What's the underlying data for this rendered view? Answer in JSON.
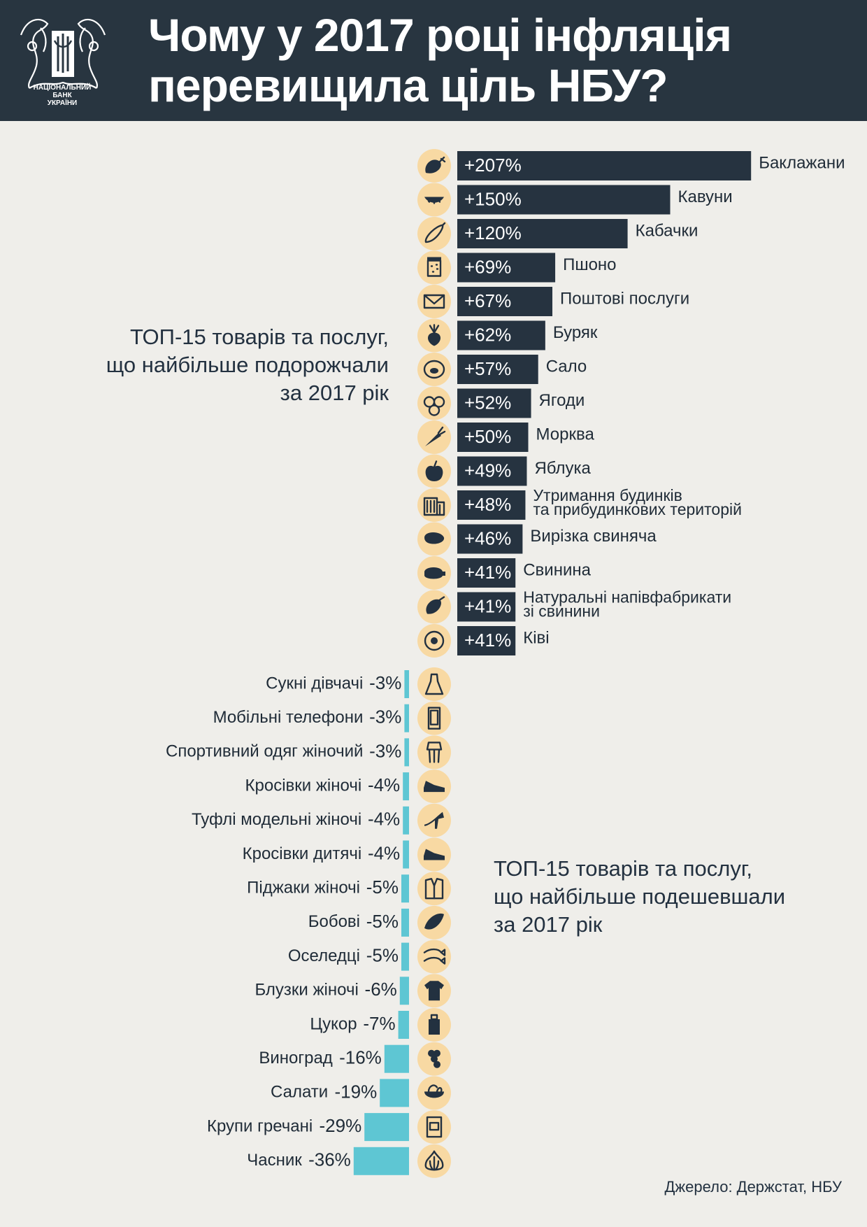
{
  "header": {
    "title_line1": "Чому у 2017 році інфляція",
    "title_line2": "перевищила ціль НБУ?",
    "logo_caption_line1": "НАЦІОНАЛЬНИЙ",
    "logo_caption_line2": "БАНК",
    "logo_caption_line3": "УКРАЇНИ"
  },
  "labels": {
    "top_line1": "ТОП-15 товарів та послуг,",
    "top_line2": "що найбільше подорожчали",
    "top_line3": "за 2017 рік",
    "bottom_line1": "ТОП-15 товарів та послуг,",
    "bottom_line2": "що найбільше подешевшали",
    "bottom_line3": "за 2017 рік"
  },
  "source": "Джерело: Держстат, НБУ",
  "colors": {
    "header_bg": "#283540",
    "increase_bar": "#263340",
    "decrease_bar": "#5ec6d3",
    "icon_circle": "#f8d9a3",
    "icon_glyph": "#233140",
    "background": "#efeeea"
  },
  "chart_data": {
    "type": "bar",
    "increase": {
      "unit": "%",
      "items": [
        {
          "name": "Баклажани",
          "value": 207,
          "label": "+207%",
          "icon": "eggplant-icon"
        },
        {
          "name": "Кавуни",
          "value": 150,
          "label": "+150%",
          "icon": "watermelon-icon"
        },
        {
          "name": "Кабачки",
          "value": 120,
          "label": "+120%",
          "icon": "zucchini-icon"
        },
        {
          "name": "Пшоно",
          "value": 69,
          "label": "+69%",
          "icon": "millet-jar-icon"
        },
        {
          "name": "Поштові  послуги",
          "value": 67,
          "label": "+67%",
          "icon": "envelope-icon"
        },
        {
          "name": "Буряк",
          "value": 62,
          "label": "+62%",
          "icon": "beet-icon"
        },
        {
          "name": "Сало",
          "value": 57,
          "label": "+57%",
          "icon": "lard-icon"
        },
        {
          "name": "Ягоди",
          "value": 52,
          "label": "+52%",
          "icon": "berries-icon"
        },
        {
          "name": "Морква",
          "value": 50,
          "label": "+50%",
          "icon": "carrot-icon"
        },
        {
          "name": "Яблука",
          "value": 49,
          "label": "+49%",
          "icon": "apple-icon"
        },
        {
          "name": "Утримання будинків\nта прибудинкових територій",
          "value": 48,
          "label": "+48%",
          "icon": "building-icon"
        },
        {
          "name": "Вирізка свиняча",
          "value": 46,
          "label": "+46%",
          "icon": "steak-icon"
        },
        {
          "name": "Свинина",
          "value": 41,
          "label": "+41%",
          "icon": "pig-icon"
        },
        {
          "name": "Натуральні напівфабрикати\nзі свинини",
          "value": 41,
          "label": "+41%",
          "icon": "ham-icon"
        },
        {
          "name": "Ківі",
          "value": 41,
          "label": "+41%",
          "icon": "kiwi-icon"
        }
      ]
    },
    "decrease": {
      "unit": "%",
      "items": [
        {
          "name": "Сукні дівчачі",
          "value": -3,
          "label": "-3%",
          "icon": "dress-icon"
        },
        {
          "name": "Мобільні телефони",
          "value": -3,
          "label": "-3%",
          "icon": "phone-icon"
        },
        {
          "name": "Спортивний одяг жіночий",
          "value": -3,
          "label": "-3%",
          "icon": "sportswear-icon"
        },
        {
          "name": "Кросівки жіночі",
          "value": -4,
          "label": "-4%",
          "icon": "sneaker-icon"
        },
        {
          "name": "Туфлі модельні жіночі",
          "value": -4,
          "label": "-4%",
          "icon": "high-heel-icon"
        },
        {
          "name": "Кросівки дитячі",
          "value": -4,
          "label": "-4%",
          "icon": "kids-sneaker-icon"
        },
        {
          "name": "Піджаки жіночі",
          "value": -5,
          "label": "-5%",
          "icon": "jacket-icon"
        },
        {
          "name": "Бобові",
          "value": -5,
          "label": "-5%",
          "icon": "beans-icon"
        },
        {
          "name": "Оселедці",
          "value": -5,
          "label": "-5%",
          "icon": "fish-icon"
        },
        {
          "name": "Блузки жіночі",
          "value": -6,
          "label": "-6%",
          "icon": "blouse-icon"
        },
        {
          "name": "Цукор",
          "value": -7,
          "label": "-7%",
          "icon": "sugar-icon"
        },
        {
          "name": "Виноград",
          "value": -16,
          "label": "-16%",
          "icon": "grapes-icon"
        },
        {
          "name": "Салати",
          "value": -19,
          "label": "-19%",
          "icon": "salad-icon"
        },
        {
          "name": "Крупи гречані",
          "value": -29,
          "label": "-29%",
          "icon": "buckwheat-icon"
        },
        {
          "name": "Часник",
          "value": -36,
          "label": "-36%",
          "icon": "garlic-icon"
        }
      ]
    }
  }
}
